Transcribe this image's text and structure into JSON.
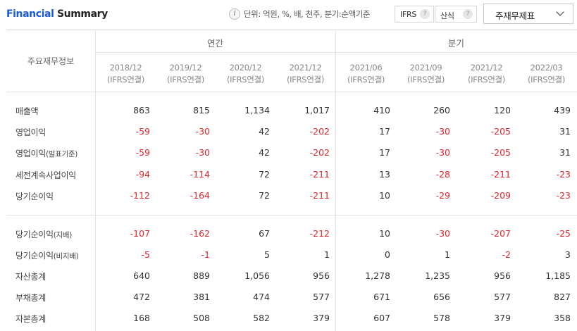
{
  "header": {
    "title_part1": "Financial",
    "title_part2": "Summary",
    "info_icon": "i",
    "unit_text": "단위: 억원, %, 배, 천주, 분기:순액기준",
    "ifrs_label": "IFRS",
    "calc_label": "산식",
    "help_glyph": "?",
    "select_value": "주재무제표"
  },
  "table": {
    "corner_label": "주요재무정보",
    "group_annual": "연간",
    "group_quarter": "분기",
    "columns": [
      {
        "period": "2018/12",
        "basis": "(IFRS연결)"
      },
      {
        "period": "2019/12",
        "basis": "(IFRS연결)"
      },
      {
        "period": "2020/12",
        "basis": "(IFRS연결)"
      },
      {
        "period": "2021/12",
        "basis": "(IFRS연결)"
      },
      {
        "period": "2021/06",
        "basis": "(IFRS연결)"
      },
      {
        "period": "2021/09",
        "basis": "(IFRS연결)"
      },
      {
        "period": "2021/12",
        "basis": "(IFRS연결)"
      },
      {
        "period": "2022/03",
        "basis": "(IFRS연결)"
      }
    ],
    "rows": [
      {
        "label": "매출액",
        "suffix": "",
        "values": [
          "863",
          "815",
          "1,134",
          "1,017",
          "410",
          "260",
          "120",
          "439"
        ]
      },
      {
        "label": "영업이익",
        "suffix": "",
        "values": [
          "-59",
          "-30",
          "42",
          "-202",
          "17",
          "-30",
          "-205",
          "31"
        ]
      },
      {
        "label": "영업이익",
        "suffix": "(발표기준)",
        "values": [
          "-59",
          "-30",
          "42",
          "-202",
          "17",
          "-30",
          "-205",
          "31"
        ]
      },
      {
        "label": "세전계속사업이익",
        "suffix": "",
        "values": [
          "-94",
          "-114",
          "72",
          "-211",
          "13",
          "-28",
          "-211",
          "-23"
        ]
      },
      {
        "label": "당기순이익",
        "suffix": "",
        "values": [
          "-112",
          "-164",
          "72",
          "-211",
          "10",
          "-29",
          "-209",
          "-23"
        ]
      },
      {
        "label": "당기순이익",
        "suffix": "(지배)",
        "values": [
          "-107",
          "-162",
          "67",
          "-212",
          "10",
          "-30",
          "-207",
          "-25"
        ]
      },
      {
        "label": "당기순이익",
        "suffix": "(비지배)",
        "values": [
          "-5",
          "-1",
          "5",
          "1",
          "0",
          "1",
          "-2",
          "3"
        ]
      },
      {
        "label": "자산총계",
        "suffix": "",
        "values": [
          "640",
          "889",
          "1,056",
          "956",
          "1,278",
          "1,235",
          "956",
          "1,185"
        ]
      },
      {
        "label": "부채총계",
        "suffix": "",
        "values": [
          "472",
          "381",
          "474",
          "577",
          "671",
          "656",
          "577",
          "827"
        ]
      },
      {
        "label": "자본총계",
        "suffix": "",
        "values": [
          "168",
          "508",
          "582",
          "379",
          "607",
          "578",
          "379",
          "358"
        ]
      }
    ]
  },
  "colors": {
    "accent": "#1a5ad6",
    "negative": "#e0242a",
    "text": "#333333",
    "grid": "#e3e3e3"
  }
}
